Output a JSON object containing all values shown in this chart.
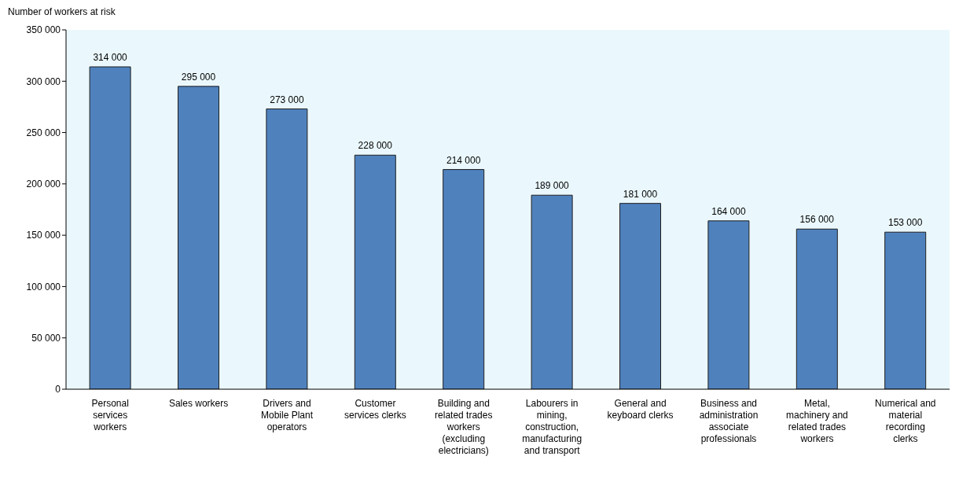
{
  "chart_data": {
    "type": "bar",
    "ylabel": "Number of workers at risk",
    "categories": [
      "Personal services workers",
      "Sales workers",
      "Drivers and Mobile Plant operators",
      "Customer services clerks",
      "Building and related trades workers (excluding electricians)",
      "Labourers in mining, construction, manufacturing and transport",
      "General and keyboard clerks",
      "Business and administration associate professionals",
      "Metal, machinery and related trades workers",
      "Numerical and material recording clerks"
    ],
    "values": [
      314000,
      295000,
      273000,
      228000,
      214000,
      189000,
      181000,
      164000,
      156000,
      153000
    ],
    "value_labels": [
      "314 000",
      "295 000",
      "273 000",
      "228 000",
      "214 000",
      "189 000",
      "181 000",
      "164 000",
      "156 000",
      "153 000"
    ],
    "color": "#4f81bd",
    "ylim": [
      0,
      350000
    ],
    "yticks": [
      {
        "value": 0,
        "label": "0"
      },
      {
        "value": 50000,
        "label": "50 000"
      },
      {
        "value": 100000,
        "label": "100 000"
      },
      {
        "value": 150000,
        "label": "150 000"
      },
      {
        "value": 200000,
        "label": "200 000"
      },
      {
        "value": 250000,
        "label": "250 000"
      },
      {
        "value": 300000,
        "label": "300 000"
      },
      {
        "value": 350000,
        "label": "350 000"
      }
    ],
    "grid": false,
    "legend": false
  }
}
